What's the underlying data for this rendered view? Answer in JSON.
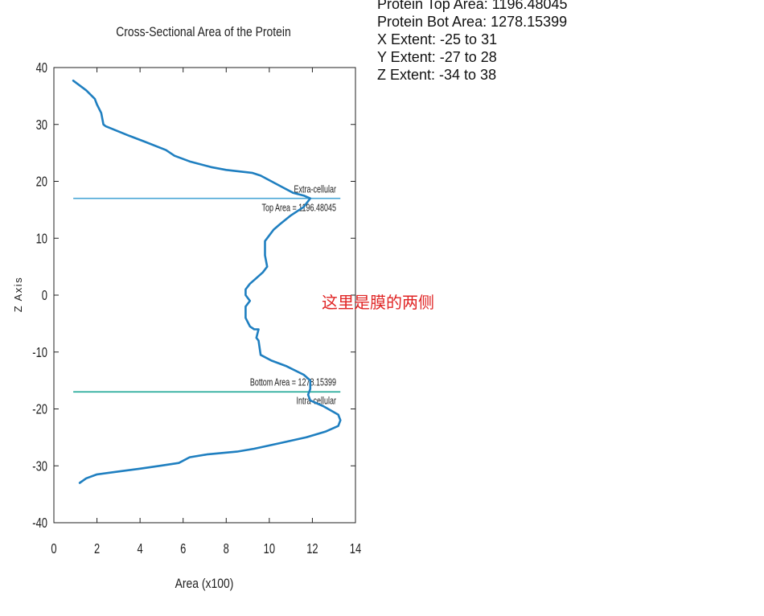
{
  "info_lines": [
    "Protein Top Area: 1196.48045",
    "Protein Bot Area: 1278.15399",
    "X Extent: -25 to 31",
    "Y Extent: -27 to 28",
    "Z Extent: -34 to 38"
  ],
  "annotation_note": "这里是膜的两侧",
  "chart_data": {
    "type": "line",
    "title": "Cross-Sectional Area of the Protein",
    "xlabel": "Area (x100)",
    "ylabel": "Z Axis",
    "xlim": [
      0,
      14
    ],
    "ylim": [
      -40,
      40
    ],
    "xticks": [
      "0",
      "2",
      "4",
      "6",
      "8",
      "10",
      "12",
      "14"
    ],
    "yticks": [
      "40",
      "30",
      "20",
      "10",
      "0",
      "-10",
      "-20",
      "-30",
      "-40"
    ],
    "series": [
      {
        "color": "#1f7fc0",
        "x": [
          0.9,
          1.5,
          1.9,
          2.0,
          2.2,
          2.3,
          2.4,
          3.5,
          4.2,
          5.2,
          5.6,
          6.3,
          7.3,
          8.0,
          9.2,
          9.6,
          10.1,
          10.6,
          11.1,
          11.6,
          11.9,
          11.6,
          11.0,
          10.5,
          10.2,
          9.8,
          9.8,
          9.9,
          9.7,
          9.4,
          9.1,
          8.9,
          8.9,
          9.1,
          8.9,
          8.9,
          9.1,
          9.3,
          9.5,
          9.4,
          9.5,
          9.6,
          10.1,
          10.8,
          11.6,
          11.9,
          11.9,
          11.8,
          11.9,
          12.5,
          13.2,
          13.3,
          13.2,
          12.6,
          11.7,
          10.5,
          9.3,
          8.5,
          7.1,
          6.3,
          5.8,
          4.9,
          4.0,
          3.0,
          2.0,
          1.5,
          1.2
        ],
        "y": [
          37.7,
          36.0,
          34.5,
          33.5,
          32.0,
          30.0,
          29.7,
          28.0,
          27.0,
          25.5,
          24.5,
          23.5,
          22.5,
          22.0,
          21.5,
          21.0,
          20.0,
          19.0,
          18.0,
          17.5,
          17.0,
          15.5,
          14.0,
          12.5,
          11.5,
          9.5,
          7.0,
          5.0,
          4.0,
          3.0,
          2.0,
          1.0,
          0.0,
          -1.0,
          -2.0,
          -4.0,
          -5.5,
          -6.0,
          -6.0,
          -7.5,
          -8.0,
          -10.5,
          -11.5,
          -12.5,
          -14.0,
          -15.0,
          -16.5,
          -17.5,
          -18.5,
          -19.5,
          -21.0,
          -22.0,
          -23.0,
          -24.0,
          -25.0,
          -26.0,
          -27.0,
          -27.5,
          -28.0,
          -28.5,
          -29.5,
          -30.0,
          -30.5,
          -31.0,
          -31.5,
          -32.2,
          -33.0
        ]
      }
    ],
    "markers": [
      {
        "y": 17,
        "color": "#4aa7d6",
        "labels": [
          "Extra-cellular",
          "Top Area = 1196.48045"
        ]
      },
      {
        "y": -17,
        "color": "#1aa595",
        "labels": [
          "Bottom Area = 1278.15399",
          "Intra-cellular"
        ]
      }
    ],
    "grid": false
  }
}
